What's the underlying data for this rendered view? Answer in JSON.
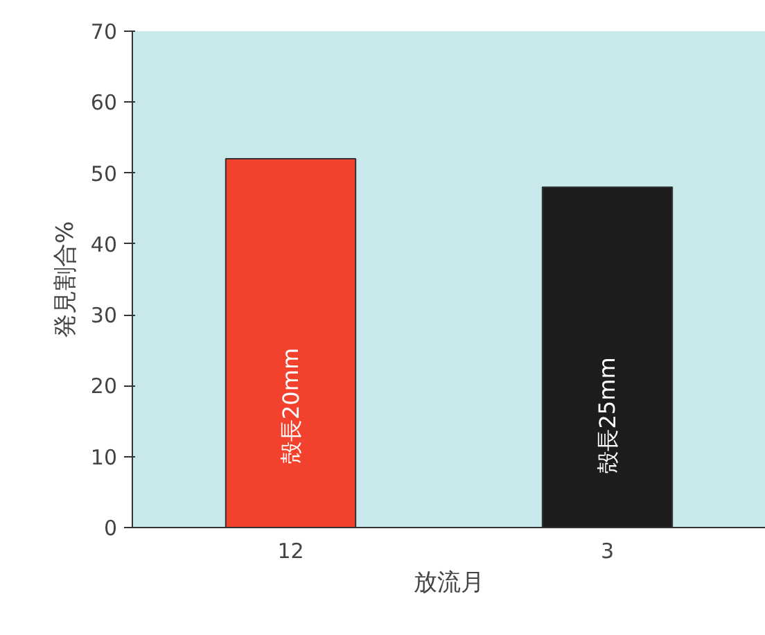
{
  "chart_data": {
    "type": "bar",
    "xlabel": "放流月",
    "ylabel": "発見割合%",
    "categories": [
      "12",
      "3"
    ],
    "values": [
      52,
      48
    ],
    "colors": [
      "#f2412c",
      "#1c1c1c"
    ],
    "ylim": [
      0,
      70
    ],
    "yticks": [
      0,
      10,
      20,
      30,
      40,
      50,
      60,
      70
    ],
    "grid": false,
    "annotations": [
      "殻長20mm",
      "殻長25mm"
    ]
  }
}
